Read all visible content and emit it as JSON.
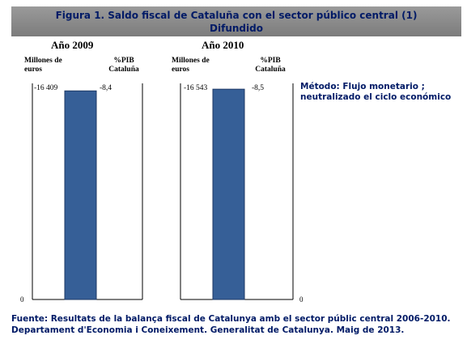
{
  "title": {
    "line1": "Figura 1. Saldo fiscal de Cataluña con el sector público central (1)",
    "line2": "Difundido"
  },
  "method_note": "Método: Flujo monetario ; neutralizado el ciclo económico",
  "source": {
    "line1": "Fuente: Resultats de la balança fiscal de Catalunya amb el sector públic central 2006-2010.",
    "line2": "Departament d'Economia i Coneixement. Generalitat de Catalunya. Maig de 2013."
  },
  "colors": {
    "bar": "#365f97",
    "text_dark_blue": "#001a66",
    "title_bg": "#8a8a8a"
  },
  "chart_data": {
    "type": "bar",
    "categories": [
      "Año 2009",
      "Año 2010"
    ],
    "series": [
      {
        "values": [
          -16409,
          -16543
        ],
        "labels": [
          "-16 409",
          "-16 543"
        ]
      }
    ],
    "pib_percent": [
      -8.4,
      -8.5
    ],
    "pib_labels": [
      "-8,4",
      "-8,5"
    ],
    "left_axis_label": "Millones de euros",
    "right_axis_label": "%PIB Cataluña",
    "axis_zero_label": "0",
    "ylim": [
      -17000,
      0
    ]
  }
}
